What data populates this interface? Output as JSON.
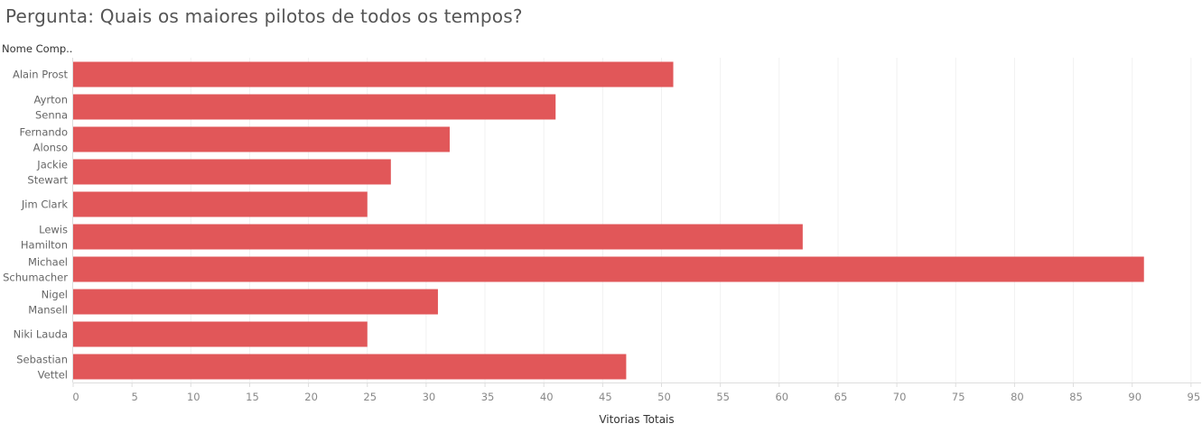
{
  "title": "Pergunta: Quais os maiores pilotos de todos os tempos?",
  "row_header": "Nome Comp..",
  "colors": {
    "bar": "#e15759",
    "grid": "#f1f1f1",
    "axis": "#dddddd"
  },
  "chart_data": {
    "type": "bar",
    "orientation": "horizontal",
    "title": "Pergunta: Quais os maiores pilotos de todos os tempos?",
    "xlabel": "Vitorias Totais",
    "ylabel": "Nome Comp..",
    "categories": [
      [
        "Alain Prost"
      ],
      [
        "Ayrton",
        "Senna"
      ],
      [
        "Fernando",
        "Alonso"
      ],
      [
        "Jackie",
        "Stewart"
      ],
      [
        "Jim Clark"
      ],
      [
        "Lewis",
        "Hamilton"
      ],
      [
        "Michael",
        "Schumacher"
      ],
      [
        "Nigel",
        "Mansell"
      ],
      [
        "Niki Lauda"
      ],
      [
        "Sebastian",
        "Vettel"
      ]
    ],
    "values": [
      51,
      41,
      32,
      27,
      25,
      62,
      91,
      31,
      25,
      47
    ],
    "xlim": [
      0,
      95
    ],
    "xticks": [
      0,
      5,
      10,
      15,
      20,
      25,
      30,
      35,
      40,
      45,
      50,
      55,
      60,
      65,
      70,
      75,
      80,
      85,
      90,
      95
    ],
    "grid": true
  }
}
